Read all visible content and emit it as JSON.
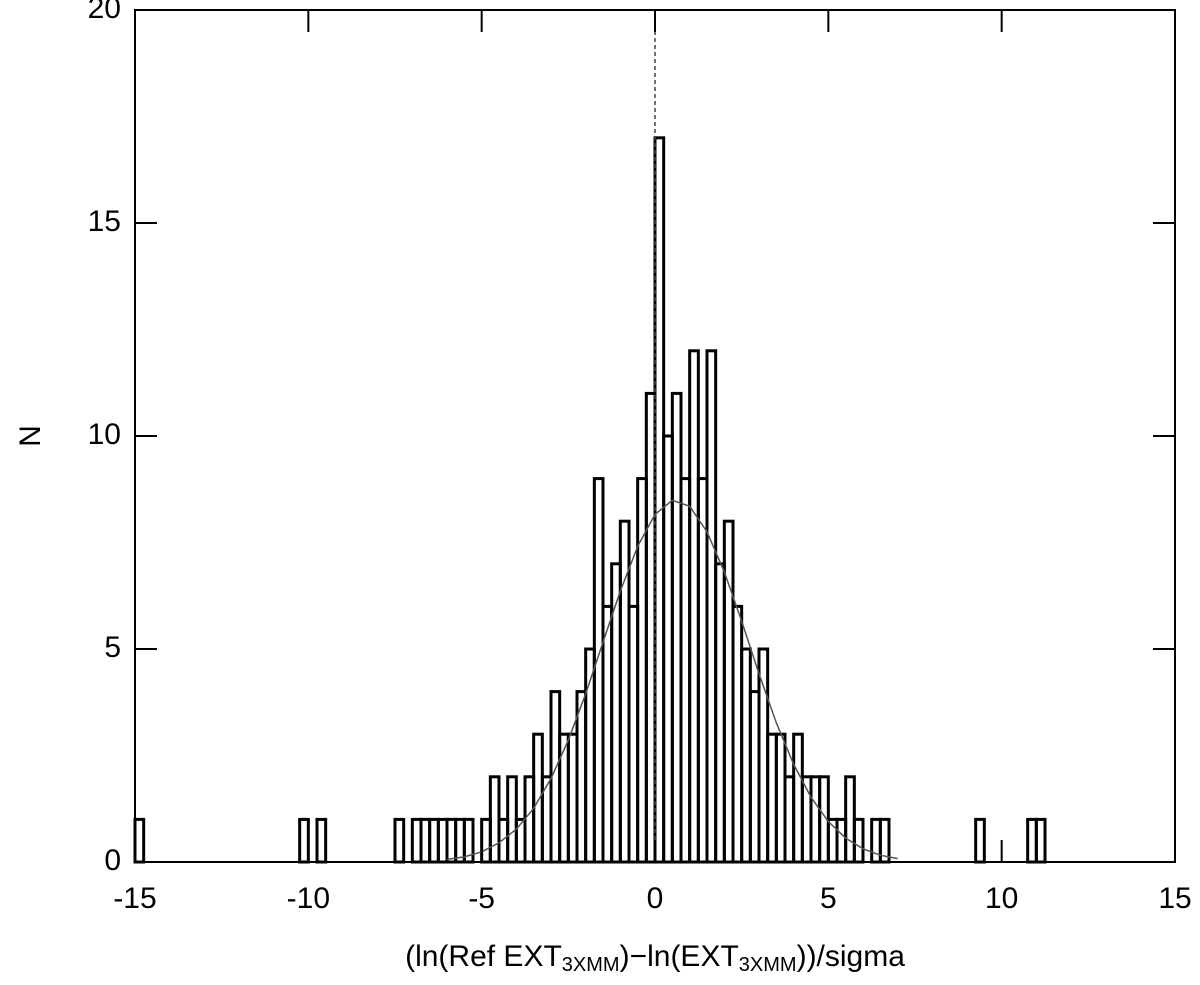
{
  "chart_data": {
    "type": "histogram",
    "x_label": [
      "(ln(Ref EXT",
      "3XMM",
      ")−ln(EXT",
      "3XMM",
      "))/sigma"
    ],
    "y_label": "N",
    "bins": [
      -15,
      -14.75,
      -14.5,
      -14.25,
      -14,
      -13.75,
      -13.5,
      -13.25,
      -13,
      -12.75,
      -12.5,
      -12.25,
      -12,
      -11.75,
      -11.5,
      -11.25,
      -11,
      -10.75,
      -10.5,
      -10.25,
      -10,
      -9.75,
      -9.5,
      -9.25,
      -9,
      -8.75,
      -8.5,
      -8.25,
      -8,
      -7.75,
      -7.5,
      -7.25,
      -7,
      -6.75,
      -6.5,
      -6.25,
      -6,
      -5.75,
      -5.5,
      -5.25,
      -5,
      -4.75,
      -4.5,
      -4.25,
      -4,
      -3.75,
      -3.5,
      -3.25,
      -3,
      -2.75,
      -2.5,
      -2.25,
      -2,
      -1.75,
      -1.5,
      -1.25,
      -1,
      -0.75,
      -0.5,
      -0.25,
      0,
      0.25,
      0.5,
      0.75,
      1,
      1.25,
      1.5,
      1.75,
      2,
      2.25,
      2.5,
      2.75,
      3,
      3.25,
      3.5,
      3.75,
      4,
      4.25,
      4.5,
      4.75,
      5,
      5.25,
      5.5,
      5.75,
      6,
      6.25,
      6.5,
      6.75,
      7,
      7.25,
      7.5,
      7.75,
      8,
      8.25,
      8.5,
      8.75,
      9,
      9.25,
      9.5,
      9.75,
      10,
      10.25,
      10.5,
      10.75,
      11,
      11.25
    ],
    "counts": [
      1,
      0,
      0,
      0,
      0,
      0,
      0,
      0,
      0,
      0,
      0,
      0,
      0,
      0,
      0,
      0,
      0,
      0,
      0,
      1,
      0,
      1,
      0,
      0,
      0,
      0,
      0,
      0,
      0,
      0,
      1,
      0,
      1,
      1,
      1,
      1,
      1,
      1,
      1,
      0,
      1,
      2,
      1,
      2,
      1,
      2,
      3,
      2,
      4,
      3,
      3,
      4,
      5,
      9,
      6,
      7,
      8,
      6,
      9,
      11,
      17,
      10,
      11,
      9,
      12,
      9,
      12,
      7,
      8,
      6,
      5,
      4,
      5,
      3,
      3,
      2,
      3,
      2,
      2,
      2,
      1,
      1,
      2,
      1,
      0,
      1,
      1,
      0,
      0,
      0,
      0,
      0,
      0,
      0,
      0,
      0,
      0,
      1,
      0,
      0,
      0,
      0,
      0,
      1,
      1
    ],
    "color": "#000000",
    "fit": {
      "color": "#555555",
      "x": [
        -6,
        -5.5,
        -5,
        -4.5,
        -4,
        -3.5,
        -3,
        -2.5,
        -2,
        -1.5,
        -1,
        -0.5,
        0,
        0.5,
        1,
        1.5,
        2,
        2.5,
        3,
        3.5,
        4,
        4.5,
        5,
        5.5,
        6,
        6.5,
        7
      ],
      "values": [
        0.06,
        0.12,
        0.24,
        0.45,
        0.77,
        1.26,
        1.96,
        2.86,
        3.95,
        5.16,
        6.36,
        7.41,
        8.16,
        8.49,
        8.35,
        7.75,
        6.81,
        5.65,
        4.42,
        3.27,
        2.29,
        1.52,
        0.95,
        0.56,
        0.31,
        0.16,
        0.08
      ]
    },
    "vline": 0,
    "xlim": [
      -15,
      15
    ],
    "xticks": [
      -15,
      -10,
      -5,
      0,
      5,
      10,
      15
    ],
    "ylim": [
      0,
      20
    ],
    "yticks": [
      0,
      5,
      10,
      15,
      20
    ]
  }
}
